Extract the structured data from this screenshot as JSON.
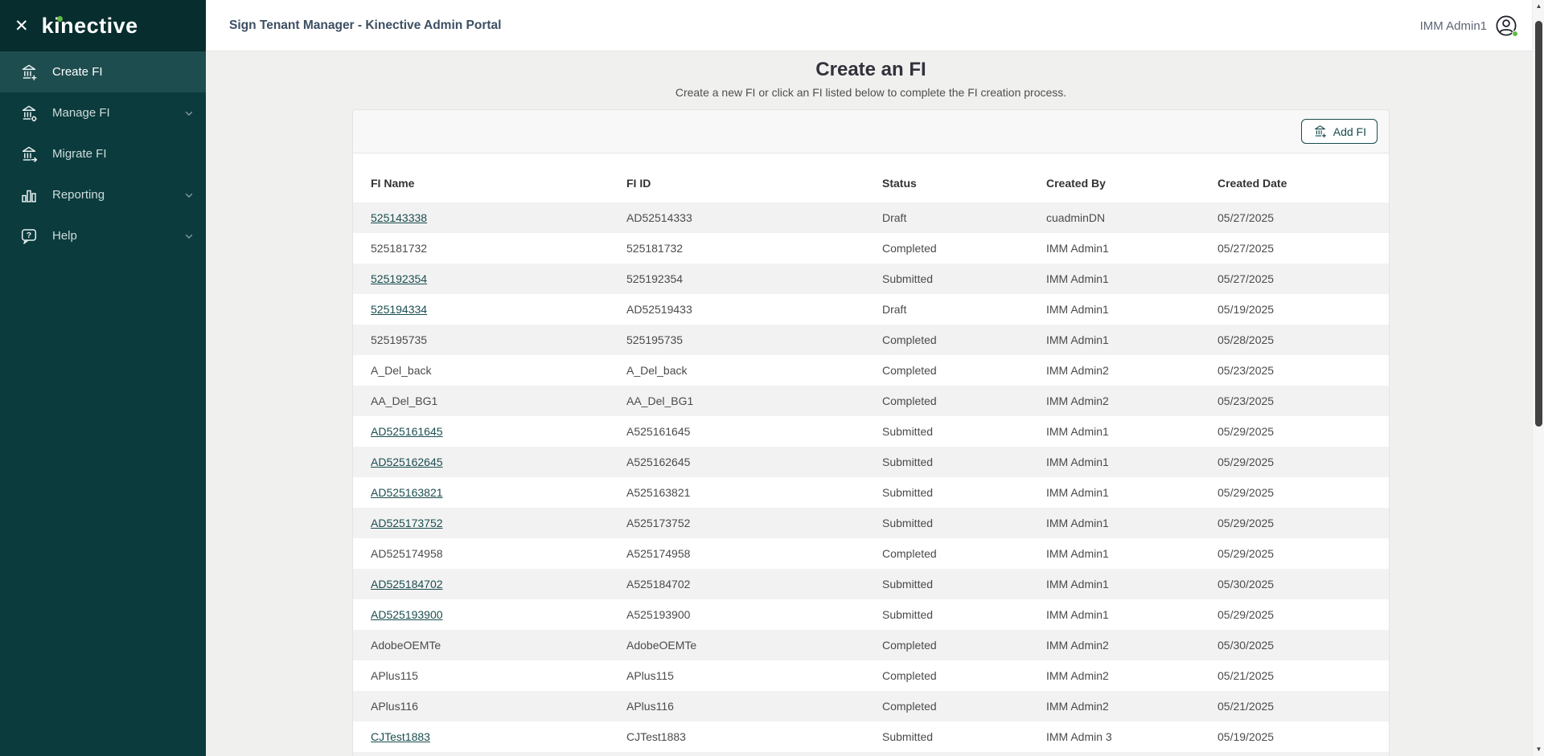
{
  "brand": {
    "logo_text": "kinective",
    "close_glyph": "✕"
  },
  "colors": {
    "sidebar_bg": "#0b3b3d",
    "sidebar_header_bg": "#082d2f",
    "active_item_bg": "#1e4d4f",
    "accent_green": "#62bb46",
    "brand_teal": "#174b4d",
    "link": "#1b4d4f",
    "header_title": "#3e4f63",
    "stripe": "#f2f2f2",
    "page_bg": "#f0f0ef"
  },
  "header": {
    "app_title": "Sign Tenant Manager - Kinective Admin Portal",
    "user_name": "IMM Admin1"
  },
  "sidebar": {
    "items": [
      {
        "label": "Create FI",
        "icon": "bank-plus-icon",
        "active": true,
        "chevron": false
      },
      {
        "label": "Manage FI",
        "icon": "bank-gear-icon",
        "active": false,
        "chevron": true
      },
      {
        "label": "Migrate FI",
        "icon": "bank-arrow-icon",
        "active": false,
        "chevron": false
      },
      {
        "label": "Reporting",
        "icon": "bar-chart-icon",
        "active": false,
        "chevron": true
      },
      {
        "label": "Help",
        "icon": "help-bubble-icon",
        "active": false,
        "chevron": true
      }
    ]
  },
  "page": {
    "title": "Create an FI",
    "subtitle": "Create a new FI or click an FI listed below to complete the FI creation process."
  },
  "toolbar": {
    "add_fi_label": "Add FI"
  },
  "table": {
    "columns": [
      "FI Name",
      "FI ID",
      "Status",
      "Created By",
      "Created Date"
    ],
    "rows": [
      {
        "fi_name": "525143338",
        "link": true,
        "fi_id": "AD52514333",
        "status": "Draft",
        "created_by": "cuadminDN",
        "created_date": "05/27/2025"
      },
      {
        "fi_name": "525181732",
        "link": false,
        "fi_id": "525181732",
        "status": "Completed",
        "created_by": "IMM Admin1",
        "created_date": "05/27/2025"
      },
      {
        "fi_name": "525192354",
        "link": true,
        "fi_id": "525192354",
        "status": "Submitted",
        "created_by": "IMM Admin1",
        "created_date": "05/27/2025"
      },
      {
        "fi_name": "525194334",
        "link": true,
        "fi_id": "AD52519433",
        "status": "Draft",
        "created_by": "IMM Admin1",
        "created_date": "05/19/2025"
      },
      {
        "fi_name": "525195735",
        "link": false,
        "fi_id": "525195735",
        "status": "Completed",
        "created_by": "IMM Admin1",
        "created_date": "05/28/2025"
      },
      {
        "fi_name": "A_Del_back",
        "link": false,
        "fi_id": "A_Del_back",
        "status": "Completed",
        "created_by": "IMM Admin2",
        "created_date": "05/23/2025"
      },
      {
        "fi_name": "AA_Del_BG1",
        "link": false,
        "fi_id": "AA_Del_BG1",
        "status": "Completed",
        "created_by": "IMM Admin2",
        "created_date": "05/23/2025"
      },
      {
        "fi_name": "AD525161645",
        "link": true,
        "fi_id": "A525161645",
        "status": "Submitted",
        "created_by": "IMM Admin1",
        "created_date": "05/29/2025"
      },
      {
        "fi_name": "AD525162645",
        "link": true,
        "fi_id": "A525162645",
        "status": "Submitted",
        "created_by": "IMM Admin1",
        "created_date": "05/29/2025"
      },
      {
        "fi_name": "AD525163821",
        "link": true,
        "fi_id": "A525163821",
        "status": "Submitted",
        "created_by": "IMM Admin1",
        "created_date": "05/29/2025"
      },
      {
        "fi_name": "AD525173752",
        "link": true,
        "fi_id": "A525173752",
        "status": "Submitted",
        "created_by": "IMM Admin1",
        "created_date": "05/29/2025"
      },
      {
        "fi_name": "AD525174958",
        "link": false,
        "fi_id": "A525174958",
        "status": "Completed",
        "created_by": "IMM Admin1",
        "created_date": "05/29/2025"
      },
      {
        "fi_name": "AD525184702",
        "link": true,
        "fi_id": "A525184702",
        "status": "Submitted",
        "created_by": "IMM Admin1",
        "created_date": "05/30/2025"
      },
      {
        "fi_name": "AD525193900",
        "link": true,
        "fi_id": "A525193900",
        "status": "Submitted",
        "created_by": "IMM Admin1",
        "created_date": "05/29/2025"
      },
      {
        "fi_name": "AdobeOEMTe",
        "link": false,
        "fi_id": "AdobeOEMTe",
        "status": "Completed",
        "created_by": "IMM Admin2",
        "created_date": "05/30/2025"
      },
      {
        "fi_name": "APlus115",
        "link": false,
        "fi_id": "APlus115",
        "status": "Completed",
        "created_by": "IMM Admin2",
        "created_date": "05/21/2025"
      },
      {
        "fi_name": "APlus116",
        "link": false,
        "fi_id": "APlus116",
        "status": "Completed",
        "created_by": "IMM Admin2",
        "created_date": "05/21/2025"
      },
      {
        "fi_name": "CJTest1883",
        "link": true,
        "fi_id": "CJTest1883",
        "status": "Submitted",
        "created_by": "IMM Admin 3",
        "created_date": "05/19/2025"
      }
    ]
  }
}
